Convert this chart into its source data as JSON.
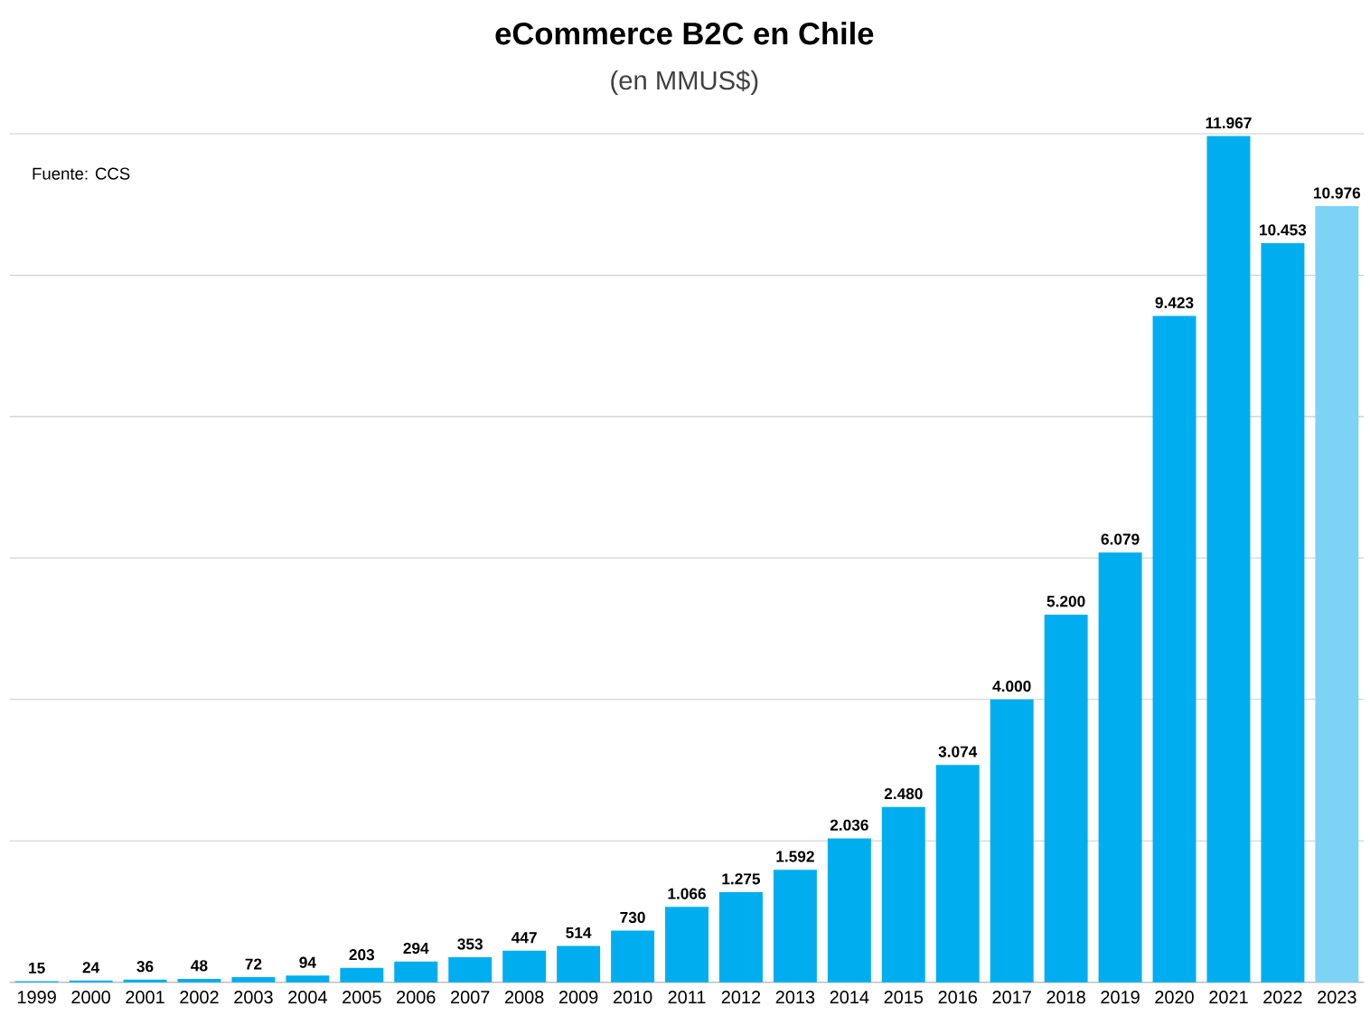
{
  "chart_data": {
    "type": "bar",
    "title": "eCommerce B2C en Chile",
    "subtitle": "(en MMUS$)",
    "categories": [
      "1999",
      "2000",
      "2001",
      "2002",
      "2003",
      "2004",
      "2005",
      "2006",
      "2007",
      "2008",
      "2009",
      "2010",
      "2011",
      "2012",
      "2013",
      "2014",
      "2015",
      "2016",
      "2017",
      "2018",
      "2019",
      "2020",
      "2021",
      "2022",
      "2023"
    ],
    "values": [
      15,
      24,
      36,
      48,
      72,
      94,
      203,
      294,
      353,
      447,
      514,
      730,
      1066,
      1275,
      1592,
      2036,
      2480,
      3074,
      4000,
      5200,
      6079,
      9423,
      11967,
      10453,
      10976
    ],
    "value_labels": [
      "15",
      "24",
      "36",
      "48",
      "72",
      "94",
      "203",
      "294",
      "353",
      "447",
      "514",
      "730",
      "1.066",
      "1.275",
      "1.592",
      "2.036",
      "2.480",
      "3.074",
      "4.000",
      "5.200",
      "6.079",
      "9.423",
      "11.967",
      "10.453",
      "10.976"
    ],
    "colors": [
      "#00aeef",
      "#00aeef",
      "#00aeef",
      "#00aeef",
      "#00aeef",
      "#00aeef",
      "#00aeef",
      "#00aeef",
      "#00aeef",
      "#00aeef",
      "#00aeef",
      "#00aeef",
      "#00aeef",
      "#00aeef",
      "#00aeef",
      "#00aeef",
      "#00aeef",
      "#00aeef",
      "#00aeef",
      "#00aeef",
      "#00aeef",
      "#00aeef",
      "#00aeef",
      "#00aeef",
      "#7dd3f5"
    ],
    "ylim": [
      0,
      12000
    ],
    "yticks": [
      {
        "value": 0,
        "label": null
      },
      {
        "value": 2000,
        "label": null
      },
      {
        "value": 4000,
        "label": null
      },
      {
        "value": 6000,
        "label": null
      },
      {
        "value": 8000,
        "label": null
      },
      {
        "value": 10000,
        "label": null
      },
      {
        "value": 12000,
        "label": null
      }
    ],
    "grid": "y",
    "tick_labels": "x",
    "annotations": [
      "Fuente: CCS"
    ]
  }
}
